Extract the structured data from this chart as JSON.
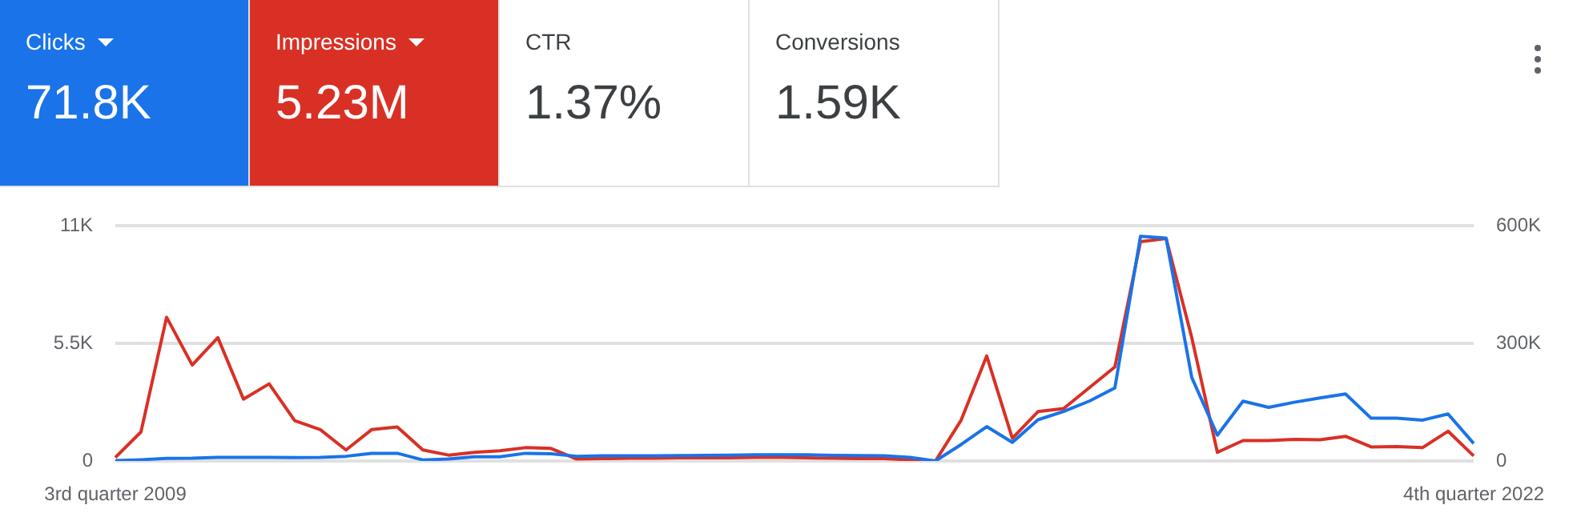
{
  "chart_data": [
    {
      "type": "other",
      "categories": [
        "Clicks",
        "Impressions",
        "CTR",
        "Conversions"
      ],
      "annotations": [
        "71.8K",
        "5.23M",
        "1.37%",
        "1.59K"
      ],
      "colors": [
        "#1a73e8",
        "#d93025",
        "#ffffff",
        "#ffffff"
      ]
    },
    {
      "type": "line",
      "categories": [
        "3rd quarter 2009",
        null,
        null,
        null,
        null,
        null,
        null,
        null,
        null,
        null,
        null,
        null,
        null,
        null,
        null,
        null,
        null,
        null,
        null,
        null,
        null,
        null,
        null,
        null,
        null,
        null,
        null,
        null,
        null,
        null,
        null,
        null,
        null,
        null,
        null,
        null,
        null,
        null,
        null,
        null,
        null,
        null,
        null,
        null,
        null,
        null,
        null,
        null,
        null,
        null,
        null,
        null,
        null,
        "4th quarter 2022"
      ],
      "series": [
        {
          "color": "#1a73e8",
          "values": [
            20,
            60,
            120,
            130,
            170,
            170,
            170,
            160,
            170,
            220,
            360,
            360,
            50,
            90,
            200,
            200,
            360,
            340,
            220,
            240,
            240,
            240,
            250,
            260,
            270,
            290,
            290,
            290,
            260,
            250,
            240,
            170,
            0,
            770,
            1610,
            870,
            1930,
            2320,
            2800,
            3420,
            10520,
            10430,
            3910,
            1210,
            2800,
            2510,
            2750,
            2950,
            3140,
            2000,
            2000,
            1910,
            2200,
            820
          ]
        },
        {
          "color": "#d93025",
          "axis": "y2",
          "values": [
            9000,
            74000,
            367000,
            245000,
            315000,
            158000,
            197000,
            103000,
            80000,
            28000,
            80000,
            87000,
            28000,
            15000,
            22000,
            26000,
            34000,
            32000,
            5000,
            6000,
            7000,
            7000,
            8000,
            8000,
            8000,
            9000,
            9000,
            8000,
            7000,
            6000,
            6000,
            3000,
            0,
            104000,
            268000,
            58000,
            126000,
            134000,
            187000,
            240000,
            560000,
            568000,
            315000,
            22000,
            52000,
            52000,
            55000,
            54000,
            63000,
            36000,
            37000,
            34000,
            76000,
            13000
          ]
        }
      ],
      "ylim": [
        0,
        11000
      ],
      "yticks": [
        0,
        {
          "value": 5500,
          "label": "5.5K"
        },
        {
          "value": 11000,
          "label": "11K"
        }
      ],
      "y2lim": [
        0,
        600000
      ],
      "y2ticks": [
        0,
        {
          "value": 300000,
          "label": "300K"
        },
        {
          "value": 600000,
          "label": "600K"
        }
      ],
      "grid": "y",
      "legend": false,
      "marker": "none",
      "line_style": "solid"
    }
  ]
}
